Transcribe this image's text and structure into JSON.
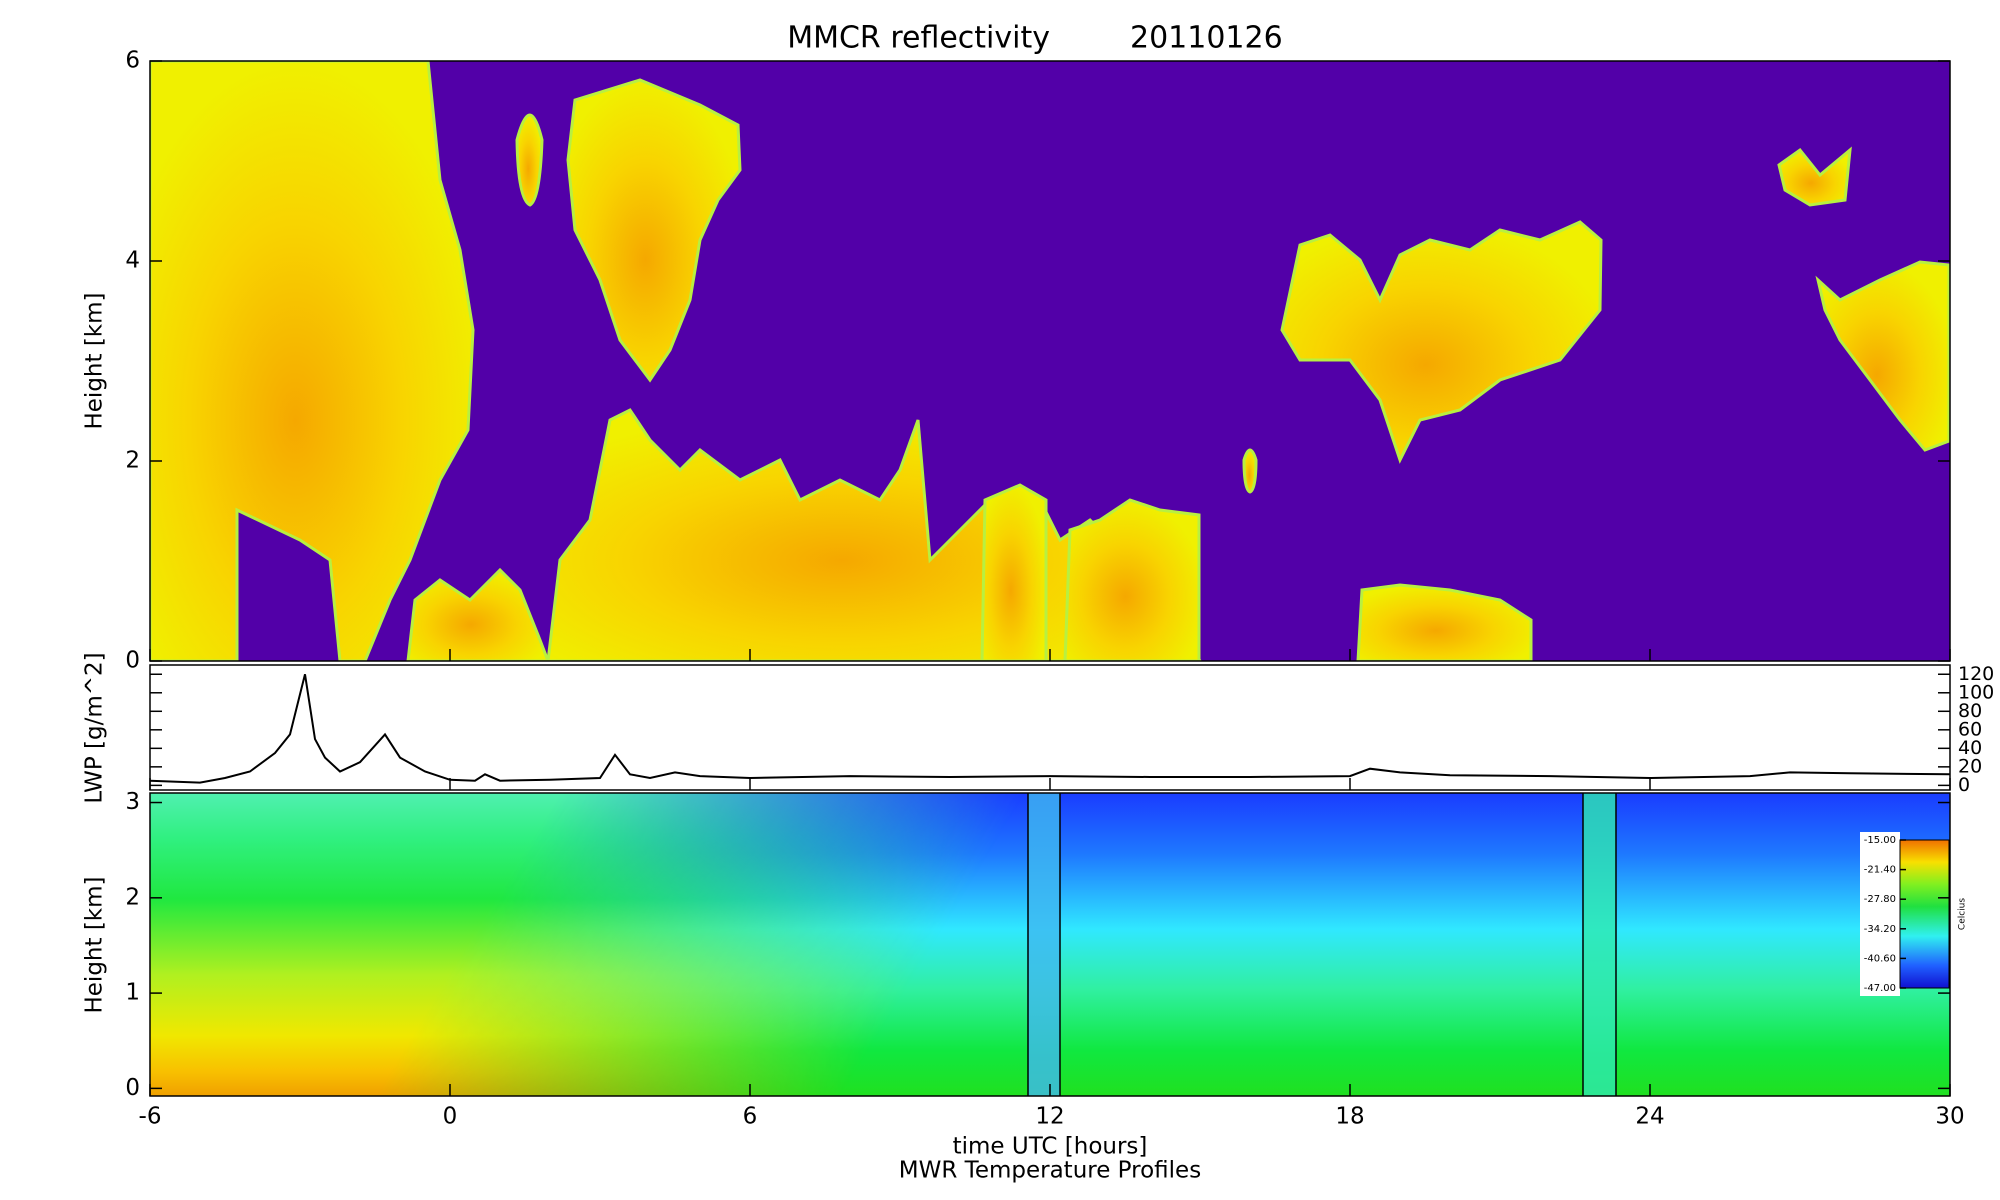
{
  "chart_data": [
    {
      "type": "heatmap",
      "title": "MMCR reflectivity",
      "subtitle": "20110126",
      "y_label": "Height [km]",
      "xlim": [
        -6,
        30
      ],
      "ylim": [
        0,
        6
      ],
      "yticks": [
        0,
        2,
        4,
        6
      ]
    },
    {
      "type": "line",
      "y_label": "LWP [g/m^2]",
      "xlim": [
        -6,
        30
      ],
      "ylim": [
        -5,
        130
      ],
      "yticks": [
        0,
        20,
        40,
        60,
        80,
        100,
        120
      ],
      "y_axis_side": "right",
      "color": "#000000",
      "x": [
        -6,
        -5,
        -4.5,
        -4,
        -3.5,
        -3.2,
        -2.9,
        -2.7,
        -2.5,
        -2.2,
        -1.8,
        -1.3,
        -1,
        -0.5,
        0,
        0.5,
        0.7,
        1,
        2,
        3,
        3.3,
        3.6,
        4,
        4.5,
        5,
        6,
        8,
        10,
        12,
        14,
        16,
        18,
        18.4,
        19,
        20,
        22,
        24,
        26,
        26.8,
        28,
        30
      ],
      "values": [
        5,
        3,
        8,
        15,
        35,
        55,
        120,
        50,
        30,
        15,
        25,
        55,
        30,
        15,
        6,
        5,
        12,
        5,
        6,
        8,
        33,
        12,
        8,
        14,
        10,
        8,
        10,
        9,
        10,
        9,
        9,
        10,
        18,
        14,
        11,
        10,
        8,
        10,
        14,
        13,
        12
      ]
    },
    {
      "type": "heatmap",
      "y_label": "Height [km]",
      "x_label": "time UTC [hours]",
      "caption": "MWR Temperature Profiles",
      "xlim": [
        -6,
        30
      ],
      "xticks": [
        -6,
        0,
        6,
        12,
        18,
        24,
        30
      ],
      "ylim": [
        -0.08,
        3.1
      ],
      "yticks": [
        0,
        1,
        2,
        3
      ],
      "colorbar": {
        "label": "Celcius",
        "clim": [
          -47,
          -15
        ],
        "ticks": [
          {
            "value": -15,
            "label": "-15.00"
          },
          {
            "value": -21.4,
            "label": "-21.40"
          },
          {
            "value": -27.8,
            "label": "-27.80"
          },
          {
            "value": -34.2,
            "label": "-34.20"
          },
          {
            "value": -40.6,
            "label": "-40.60"
          },
          {
            "value": -47,
            "label": "-47.00"
          }
        ]
      }
    }
  ]
}
